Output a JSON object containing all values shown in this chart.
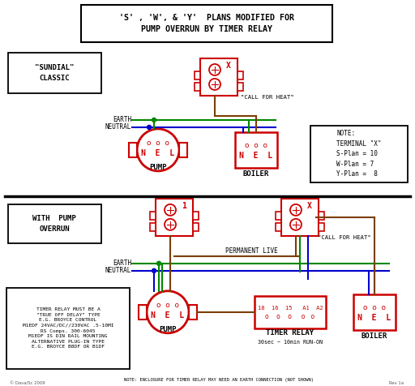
{
  "title_line1": "'S' , 'W', & 'Y'  PLANS MODIFIED FOR",
  "title_line2": "PUMP OVERRUN BY TIMER RELAY",
  "bg_color": "#ffffff",
  "red": "#cc0000",
  "green": "#008800",
  "blue": "#0000cc",
  "brown": "#7B3F00",
  "black": "#000000",
  "gray": "#555555",
  "sundial_label": "\"SUNDIAL\"\nCLASSIC",
  "with_pump_label": "WITH  PUMP\nOVERRUN",
  "note_text": "NOTE:\nTERMINAL \"X\"\nS-Plan = 10\nW-Plan = 7\nY-Plan =  8",
  "timer_note": "TIMER RELAY MUST BE A\n\"TRUE OFF DELAY\" TYPE\nE.G. BROYCE CONTROL\nM1EDF 24VAC/DC//230VAC .5-10MI\nRS Comps. 300-6045\nM1EDF IS DIN RAIL MOUNTING\nALTERNATIVE PLUG-IN TYPE\nE.G. BROYCE B8DF OR B1DF",
  "bottom_note": "NOTE: ENCLOSURE FOR TIMER RELAY MAY NEED AN EARTH CONNECTION (NOT SHOWN)",
  "copyright": "© Dava/Sc 2009",
  "rev": "Rev 1a"
}
